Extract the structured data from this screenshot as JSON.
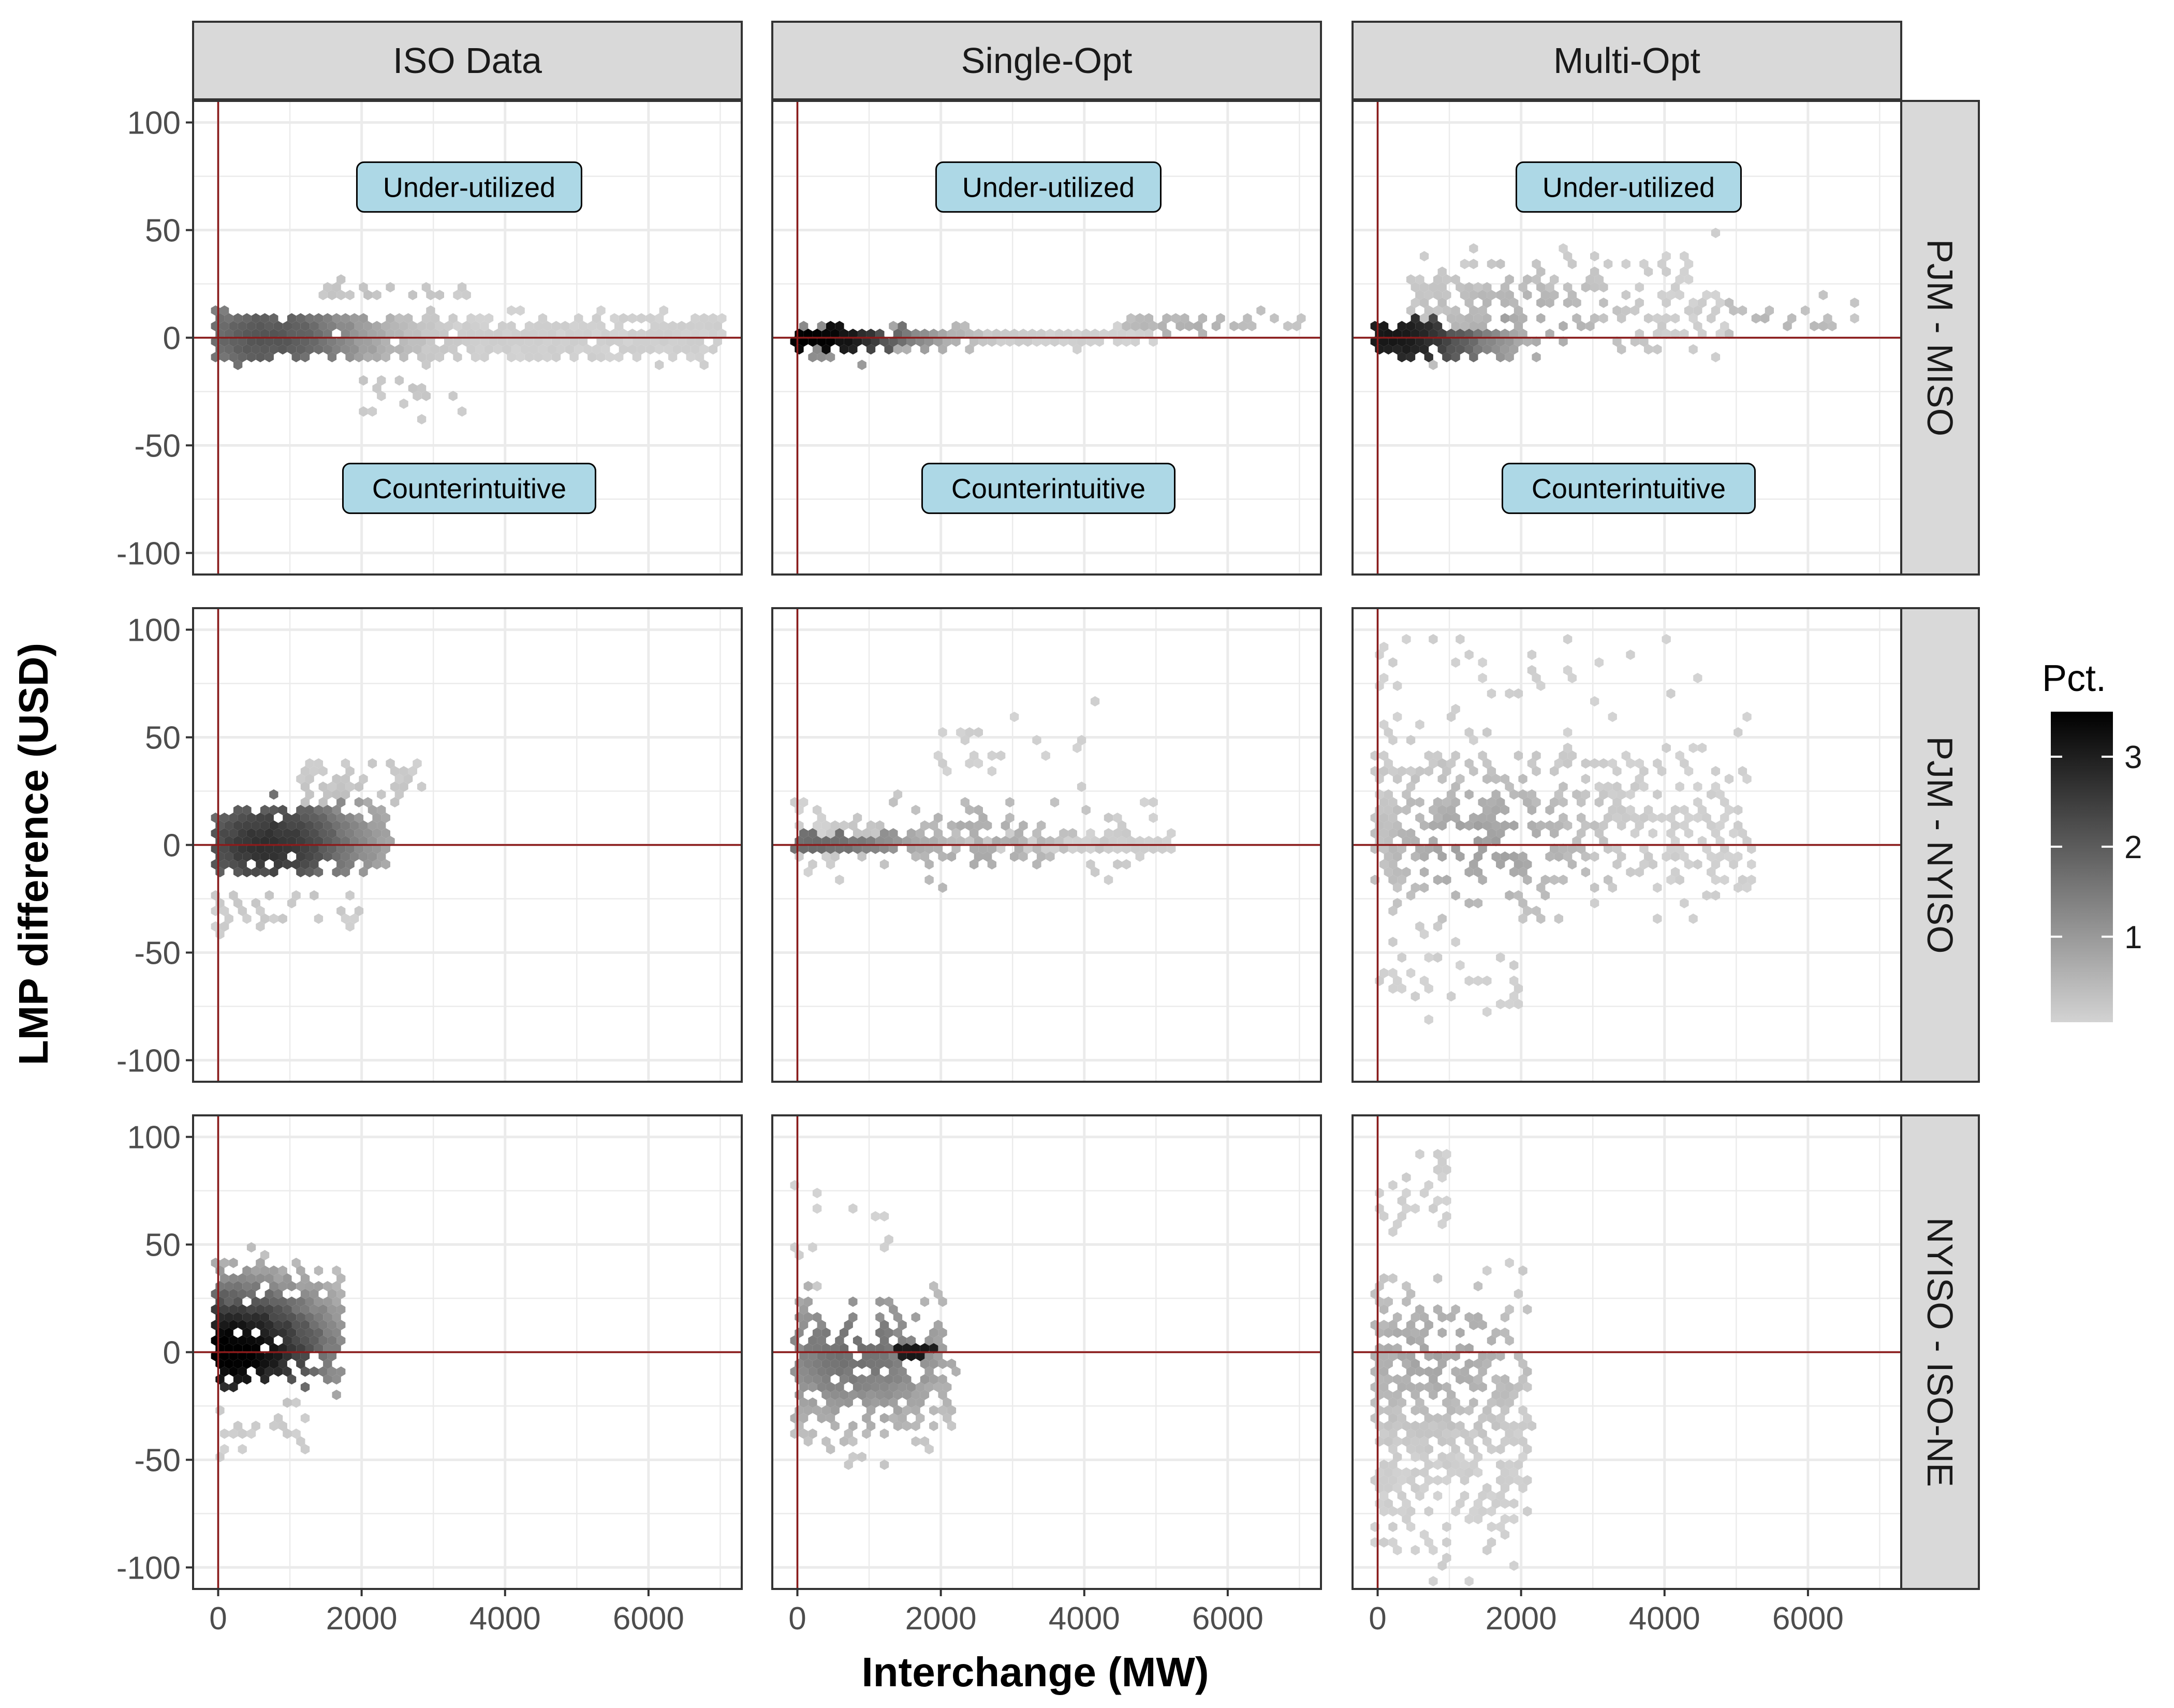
{
  "chart_data": {
    "type": "hexbin",
    "xlabel": "Interchange (MW)",
    "ylabel": "LMP difference (USD)",
    "xlim": [
      -350,
      7300
    ],
    "ylim": [
      -110,
      110
    ],
    "xticks": [
      0,
      2000,
      4000,
      6000
    ],
    "yticks": [
      -100,
      -50,
      0,
      50,
      100
    ],
    "xtick_labels": [
      "0",
      "2000",
      "4000",
      "6000"
    ],
    "ytick_labels": [
      "-100",
      "-50",
      "0",
      "50",
      "100"
    ],
    "reference_lines": {
      "x": 0,
      "y": 0,
      "color": "#8b1a1a"
    },
    "grid": true,
    "columns": [
      "ISO Data",
      "Single-Opt",
      "Multi-Opt"
    ],
    "rows": [
      "PJM - MISO",
      "PJM - NYISO",
      "NYISO - ISO-NE"
    ],
    "annotations": {
      "row": "PJM - MISO",
      "items": [
        {
          "label": "Under-utilized",
          "x": 3500,
          "y": 70
        },
        {
          "label": "Counterintuitive",
          "x": 3500,
          "y": -70
        }
      ]
    },
    "legend": {
      "title": "Pct.",
      "position": "right",
      "ticks": [
        1,
        2,
        3
      ],
      "tick_labels": [
        "1",
        "2",
        "3"
      ],
      "range": [
        0.05,
        3.5
      ],
      "color_low": "#d3d3d3",
      "color_high": "#000000"
    },
    "panels": [
      {
        "column": "ISO Data",
        "row": "PJM - MISO",
        "clusters": [
          {
            "x": [
              0,
              7000
            ],
            "y": [
              -12,
              12
            ],
            "n": 900,
            "peak": 2.0,
            "xc": 700
          },
          {
            "x": [
              1500,
              3500
            ],
            "y": [
              15,
              30
            ],
            "n": 30,
            "peak": 0.3,
            "xc": 2200
          },
          {
            "x": [
              2000,
              3500
            ],
            "y": [
              -38,
              -15
            ],
            "n": 18,
            "peak": 0.3,
            "xc": 2500
          }
        ]
      },
      {
        "column": "Single-Opt",
        "row": "PJM - MISO",
        "clusters": [
          {
            "x": [
              0,
              5000
            ],
            "y": [
              -5,
              5
            ],
            "n": 260,
            "peak": 3.4,
            "xc": 200
          },
          {
            "x": [
              4500,
              7100
            ],
            "y": [
              0,
              12
            ],
            "n": 40,
            "peak": 0.5,
            "xc": 5500
          },
          {
            "x": [
              0,
              1600
            ],
            "y": [
              -12,
              8
            ],
            "n": 50,
            "peak": 1.2,
            "xc": 300
          }
        ]
      },
      {
        "column": "Multi-Opt",
        "row": "PJM - MISO",
        "clusters": [
          {
            "x": [
              0,
              2000
            ],
            "y": [
              -10,
              8
            ],
            "n": 220,
            "peak": 3.0,
            "xc": 200
          },
          {
            "x": [
              500,
              4800
            ],
            "y": [
              -15,
              48
            ],
            "n": 230,
            "peak": 0.6,
            "xc": 2000
          },
          {
            "x": [
              4800,
              6800
            ],
            "y": [
              0,
              20
            ],
            "n": 18,
            "peak": 0.4,
            "xc": 5500
          }
        ]
      },
      {
        "column": "ISO Data",
        "row": "PJM - NYISO",
        "clusters": [
          {
            "x": [
              0,
              2400
            ],
            "y": [
              -15,
              20
            ],
            "n": 520,
            "peak": 2.6,
            "xc": 700
          },
          {
            "x": [
              1200,
              2800
            ],
            "y": [
              15,
              42
            ],
            "n": 60,
            "peak": 0.4,
            "xc": 1800
          },
          {
            "x": [
              0,
              2200
            ],
            "y": [
              -45,
              -15
            ],
            "n": 40,
            "peak": 0.3,
            "xc": 900
          }
        ]
      },
      {
        "column": "Single-Opt",
        "row": "PJM - NYISO",
        "clusters": [
          {
            "x": [
              0,
              5200
            ],
            "y": [
              -3,
              5
            ],
            "n": 280,
            "peak": 1.6,
            "xc": 300
          },
          {
            "x": [
              0,
              5200
            ],
            "y": [
              -20,
              28
            ],
            "n": 160,
            "peak": 0.6,
            "xc": 2500
          },
          {
            "x": [
              2000,
              5000
            ],
            "y": [
              28,
              70
            ],
            "n": 22,
            "peak": 0.3,
            "xc": 3800
          }
        ]
      },
      {
        "column": "Multi-Opt",
        "row": "PJM - NYISO",
        "clusters": [
          {
            "x": [
              0,
              5200
            ],
            "y": [
              -40,
              60
            ],
            "n": 460,
            "peak": 0.8,
            "xc": 1500
          },
          {
            "x": [
              0,
              2000
            ],
            "y": [
              -85,
              -40
            ],
            "n": 35,
            "peak": 0.3,
            "xc": 800
          },
          {
            "x": [
              0,
              4500
            ],
            "y": [
              60,
              105
            ],
            "n": 30,
            "peak": 0.3,
            "xc": 2500
          }
        ]
      },
      {
        "column": "ISO Data",
        "row": "NYISO - ISO-NE",
        "clusters": [
          {
            "x": [
              0,
              1700
            ],
            "y": [
              -20,
              45
            ],
            "n": 520,
            "peak": 3.5,
            "xc": 200
          },
          {
            "x": [
              0,
              1200
            ],
            "y": [
              -55,
              -20
            ],
            "n": 25,
            "peak": 0.3,
            "xc": 500
          }
        ]
      },
      {
        "column": "Single-Opt",
        "row": "NYISO - ISO-NE",
        "clusters": [
          {
            "x": [
              0,
              2200
            ],
            "y": [
              -50,
              30
            ],
            "n": 360,
            "peak": 1.6,
            "xc": 800
          },
          {
            "x": [
              1400,
              1900
            ],
            "y": [
              -4,
              4
            ],
            "n": 20,
            "peak": 3.0,
            "xc": 1650
          },
          {
            "x": [
              0,
              1300
            ],
            "y": [
              30,
              105
            ],
            "n": 12,
            "peak": 0.3,
            "xc": 400
          }
        ]
      },
      {
        "column": "Multi-Opt",
        "row": "NYISO - ISO-NE",
        "clusters": [
          {
            "x": [
              0,
              2100
            ],
            "y": [
              -105,
              45
            ],
            "n": 460,
            "peak": 0.7,
            "xc": 800
          },
          {
            "x": [
              0,
              1000
            ],
            "y": [
              45,
              105
            ],
            "n": 30,
            "peak": 0.3,
            "xc": 300
          }
        ]
      }
    ]
  }
}
